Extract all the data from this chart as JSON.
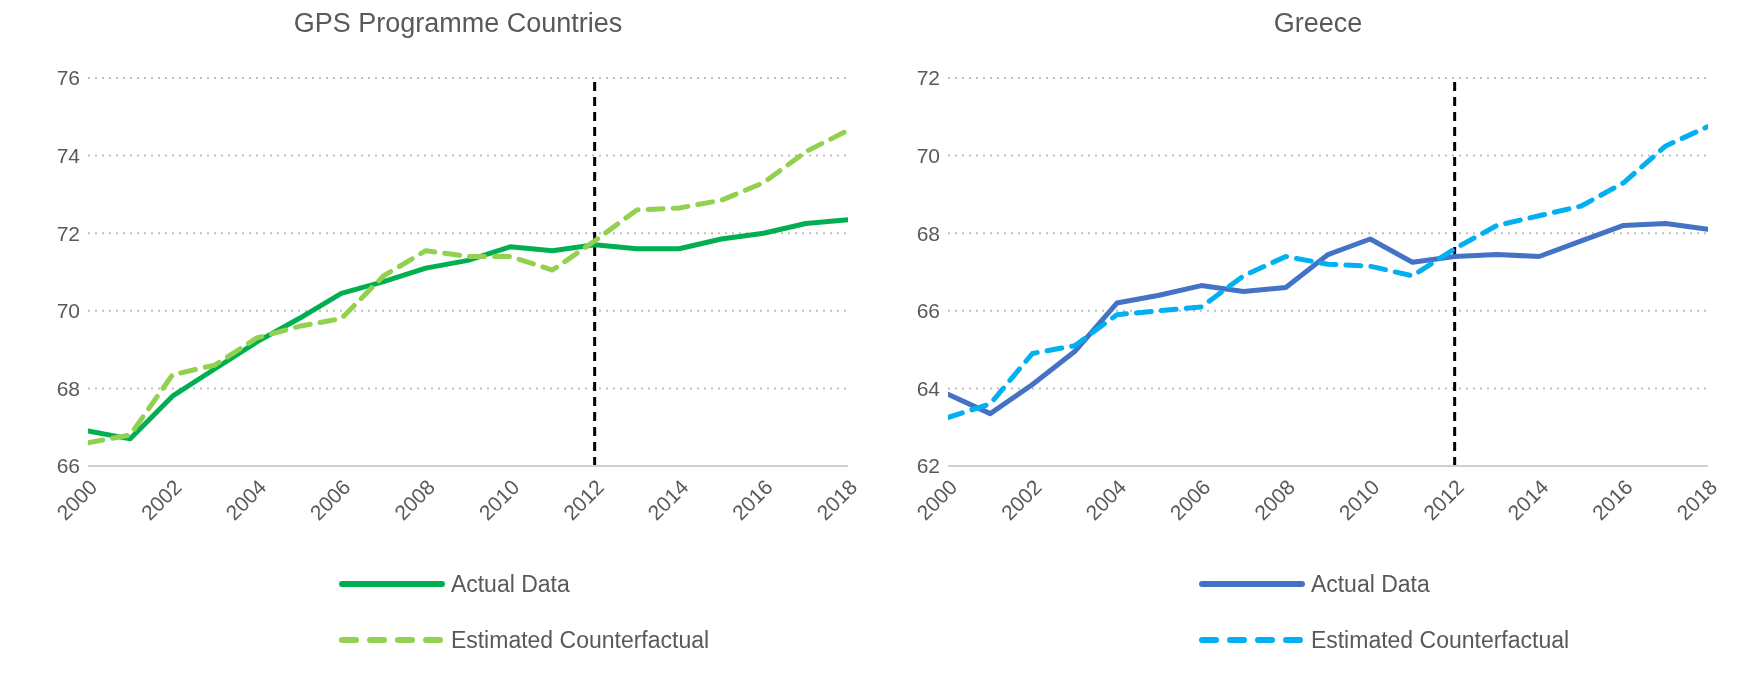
{
  "chart_data": [
    {
      "type": "line",
      "title": "GPS Programme Countries",
      "x": [
        2000,
        2001,
        2002,
        2003,
        2004,
        2005,
        2006,
        2007,
        2008,
        2009,
        2010,
        2011,
        2012,
        2013,
        2014,
        2015,
        2016,
        2017,
        2018
      ],
      "series": [
        {
          "name": "Actual Data",
          "color": "#00b050",
          "line_style": "solid",
          "values": [
            66.9,
            66.7,
            67.8,
            68.5,
            69.2,
            69.8,
            70.45,
            70.75,
            71.1,
            71.3,
            71.65,
            71.55,
            71.7,
            71.6,
            71.6,
            71.85,
            72.0,
            72.25,
            72.35
          ]
        },
        {
          "name": "Estimated Counterfactual",
          "color": "#92d050",
          "line_style": "dashed",
          "values": [
            66.6,
            66.8,
            68.35,
            68.6,
            69.3,
            69.6,
            69.8,
            70.9,
            71.55,
            71.4,
            71.4,
            71.05,
            71.8,
            72.6,
            72.65,
            72.85,
            73.3,
            74.1,
            74.65
          ]
        }
      ],
      "xlim": [
        2000,
        2018
      ],
      "xticks": [
        2000,
        2002,
        2004,
        2006,
        2008,
        2010,
        2012,
        2014,
        2016,
        2018
      ],
      "ylim": [
        66,
        76
      ],
      "yticks": [
        66,
        68,
        70,
        72,
        74,
        76
      ],
      "ref_lines": [
        {
          "axis": "x",
          "value": 2012,
          "color": "#000000",
          "line_style": "dashed"
        }
      ],
      "grid": "y",
      "legend": "bottom",
      "marker": "none"
    },
    {
      "type": "line",
      "title": "Greece",
      "x": [
        2000,
        2001,
        2002,
        2003,
        2004,
        2005,
        2006,
        2007,
        2008,
        2009,
        2010,
        2011,
        2012,
        2013,
        2014,
        2015,
        2016,
        2017,
        2018
      ],
      "series": [
        {
          "name": "Actual Data",
          "color": "#4472c4",
          "line_style": "solid",
          "values": [
            63.85,
            63.35,
            64.1,
            64.95,
            66.2,
            66.4,
            66.65,
            66.5,
            66.6,
            67.45,
            67.85,
            67.25,
            67.4,
            67.45,
            67.4,
            67.8,
            68.2,
            68.25,
            68.1
          ]
        },
        {
          "name": "Estimated Counterfactual",
          "color": "#00b0f0",
          "line_style": "dashed",
          "values": [
            63.25,
            63.6,
            64.9,
            65.1,
            65.9,
            66.0,
            66.1,
            66.9,
            67.4,
            67.2,
            67.15,
            66.9,
            67.6,
            68.2,
            68.45,
            68.7,
            69.3,
            70.25,
            70.75
          ]
        }
      ],
      "xlim": [
        2000,
        2018
      ],
      "xticks": [
        2000,
        2002,
        2004,
        2006,
        2008,
        2010,
        2012,
        2014,
        2016,
        2018
      ],
      "ylim": [
        62,
        72
      ],
      "yticks": [
        62,
        64,
        66,
        68,
        70,
        72
      ],
      "ref_lines": [
        {
          "axis": "x",
          "value": 2012,
          "color": "#000000",
          "line_style": "dashed"
        }
      ],
      "grid": "y",
      "legend": "bottom",
      "marker": "none"
    }
  ]
}
